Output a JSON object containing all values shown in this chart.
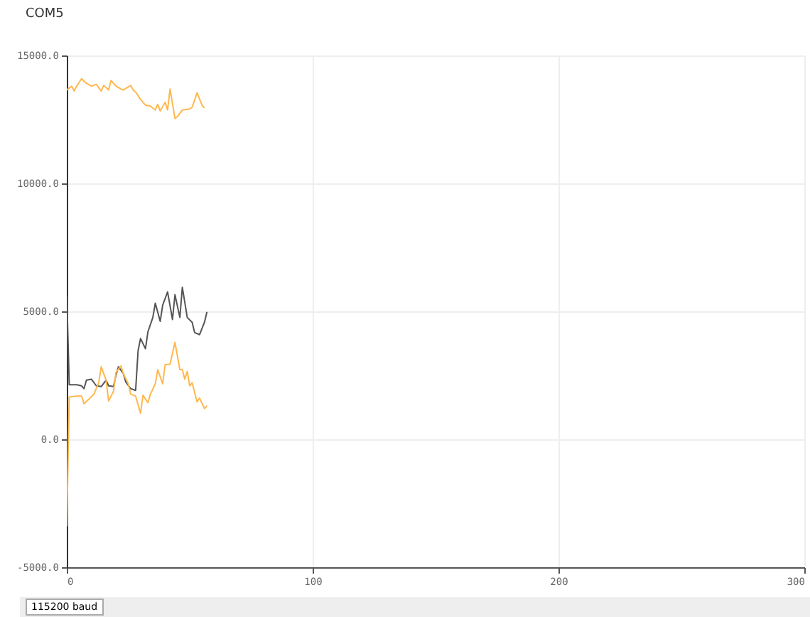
{
  "chart_data": {
    "type": "line",
    "title": "COM5",
    "annotations": [
      "115200 baud"
    ],
    "xlim": [
      0,
      300
    ],
    "xticks": [
      0,
      100,
      200,
      300
    ],
    "ylim": [
      -5000,
      15000
    ],
    "yticks": [
      {
        "value": -5000,
        "label": "-5000.0"
      },
      {
        "value": 0,
        "label": "0.0"
      },
      {
        "value": 5000,
        "label": "5000.0"
      },
      {
        "value": 10000,
        "label": "10000.0"
      },
      {
        "value": 15000,
        "label": "15000.0"
      }
    ],
    "grid": true,
    "marker": "none",
    "line_style": "solid",
    "series": [
      {
        "color": "#ffb84d",
        "x": [
          0,
          2,
          3,
          4,
          6,
          8,
          10,
          12,
          14,
          15,
          17,
          18,
          20,
          22,
          23,
          26,
          27,
          28,
          30,
          32,
          34,
          36,
          37,
          38,
          40,
          41,
          42,
          44,
          45,
          47,
          50,
          51,
          53,
          55,
          56
        ],
        "values": [
          13650,
          13800,
          13610,
          13800,
          14090,
          13910,
          13800,
          13870,
          13610,
          13830,
          13650,
          14020,
          13800,
          13690,
          13650,
          13830,
          13650,
          13570,
          13280,
          13060,
          13020,
          12870,
          13090,
          12830,
          13170,
          12870,
          13690,
          12540,
          12610,
          12870,
          12910,
          12980,
          13540,
          13060,
          12940
        ]
      },
      {
        "color": "#555555",
        "x": [
          0,
          1,
          4,
          6,
          7,
          8,
          10,
          12,
          14,
          16,
          17,
          19,
          20,
          21,
          23,
          24,
          26,
          28,
          29,
          30,
          32,
          33,
          35,
          36,
          38,
          39,
          41,
          43,
          44,
          46,
          47,
          49,
          51,
          52,
          54,
          56,
          57
        ],
        "values": [
          5600,
          2130,
          2130,
          2090,
          1980,
          2310,
          2350,
          2090,
          2060,
          2310,
          2090,
          2060,
          2500,
          2830,
          2570,
          2240,
          1980,
          1910,
          3460,
          3940,
          3540,
          4200,
          4760,
          5320,
          4610,
          5240,
          5760,
          4680,
          5650,
          4760,
          5940,
          4760,
          4570,
          4170,
          4090,
          4570,
          4980
        ]
      },
      {
        "color": "#ffb84d",
        "x": [
          0,
          1,
          4,
          6,
          7,
          9,
          11,
          13,
          14,
          16,
          17,
          19,
          20,
          22,
          23,
          25,
          26,
          28,
          30,
          31,
          33,
          34,
          36,
          37,
          39,
          40,
          42,
          44,
          46,
          47,
          48,
          49,
          50,
          51,
          53,
          54,
          56,
          57
        ],
        "values": [
          -3400,
          1650,
          1690,
          1690,
          1390,
          1570,
          1760,
          2210,
          2830,
          2310,
          1500,
          1870,
          2610,
          2870,
          2570,
          2170,
          1760,
          1690,
          1020,
          1720,
          1430,
          1760,
          2170,
          2720,
          2170,
          2910,
          2940,
          3790,
          2720,
          2720,
          2350,
          2650,
          2090,
          2210,
          1460,
          1610,
          1200,
          1310
        ]
      }
    ]
  }
}
